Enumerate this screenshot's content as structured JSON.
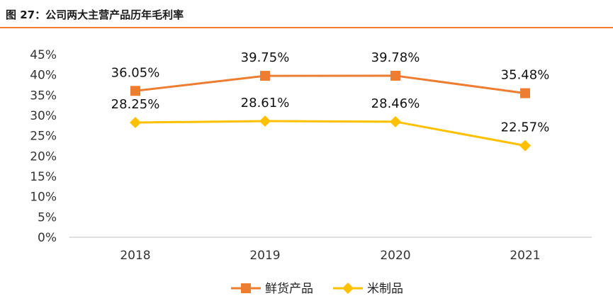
{
  "title": "图 27：公司两大主营产品历年毛利率",
  "chart_data": {
    "type": "line",
    "title": "图 27：公司两大主营产品历年毛利率",
    "categories": [
      "2018",
      "2019",
      "2020",
      "2021"
    ],
    "ylim": [
      0,
      45
    ],
    "yticks": [
      0,
      5,
      10,
      15,
      20,
      25,
      30,
      35,
      40,
      45
    ],
    "ytick_labels": [
      "0%",
      "5%",
      "10%",
      "15%",
      "20%",
      "25%",
      "30%",
      "35%",
      "40%",
      "45%"
    ],
    "grid": false,
    "legend_position": "bottom",
    "series": [
      {
        "name": "鲜货产品",
        "values": [
          36.05,
          39.75,
          39.78,
          35.48
        ],
        "labels": [
          "36.05%",
          "39.75%",
          "39.78%",
          "35.48%"
        ],
        "color": "#ED7D31",
        "marker": "square"
      },
      {
        "name": "米制品",
        "values": [
          28.25,
          28.61,
          28.46,
          22.57
        ],
        "labels": [
          "28.25%",
          "28.61%",
          "28.46%",
          "22.57%"
        ],
        "color": "#FFC000",
        "marker": "diamond"
      }
    ]
  }
}
